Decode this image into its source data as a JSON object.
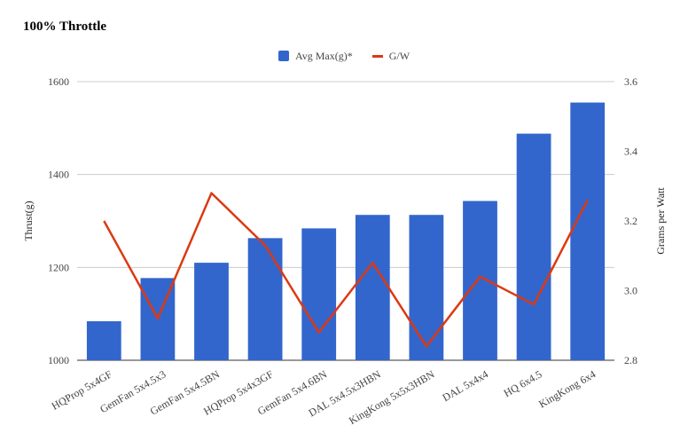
{
  "chart_data": {
    "type": "bar",
    "title": "100% Throttle",
    "categories": [
      "HQProp 5x4GF",
      "GemFan 5x4.5x3",
      "GemFan 5x4.5BN",
      "HQProp 5x4x3GF",
      "GemFan 5x4.6BN",
      "DAL 5x4.5x3HBN",
      "KingKong 5x5x3HBN",
      "DAL 5x4x4",
      "HQ 6x4.5",
      "KingKong 6x4"
    ],
    "series": [
      {
        "name": "Avg Max(g)*",
        "type": "bar",
        "axis": "left",
        "color": "#3366cc",
        "values": [
          1084,
          1177,
          1210,
          1263,
          1284,
          1313,
          1313,
          1343,
          1488,
          1555
        ]
      },
      {
        "name": "G/W",
        "type": "line",
        "axis": "right",
        "color": "#dc3912",
        "values": [
          3.2,
          2.92,
          3.28,
          3.13,
          2.88,
          3.08,
          2.84,
          3.04,
          2.96,
          3.26
        ]
      }
    ],
    "ylabel": "Thrust(g)",
    "y2label": "Grams per Watt",
    "ylim": [
      1000,
      1600
    ],
    "y2lim": [
      2.8,
      3.6
    ],
    "yticks": [
      "1000",
      "1200",
      "1400",
      "1600"
    ],
    "y2ticks": [
      "2.8",
      "3.0",
      "3.2",
      "3.4",
      "3.6"
    ],
    "grid": true,
    "legend_position": "top"
  }
}
